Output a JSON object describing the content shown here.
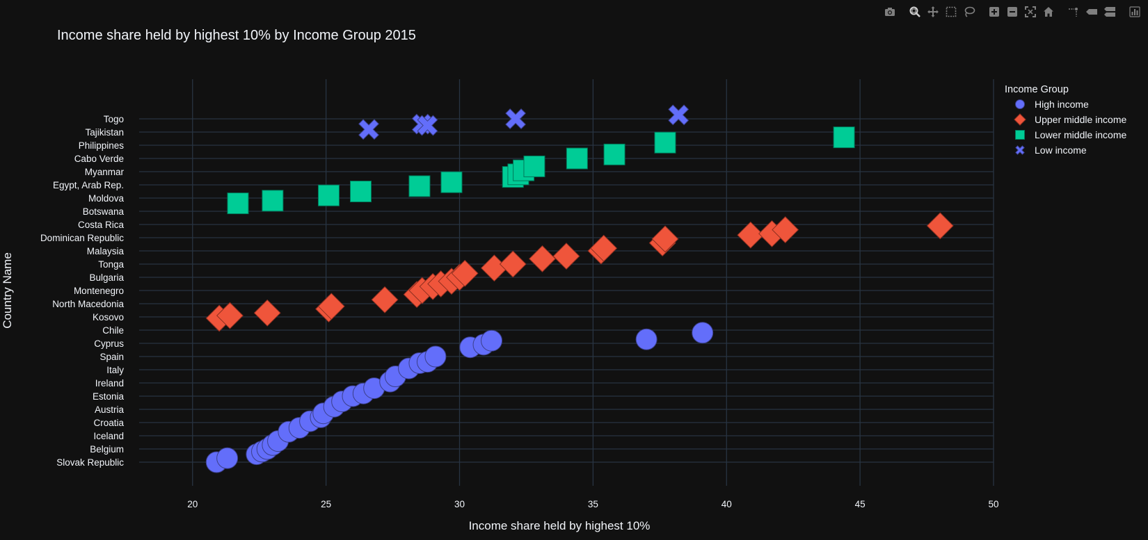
{
  "toolbar": {
    "buttons": [
      {
        "name": "camera-icon",
        "title": "Download plot as a png"
      },
      {
        "name": "zoom-icon",
        "title": "Zoom"
      },
      {
        "name": "pan-icon",
        "title": "Pan"
      },
      {
        "name": "box-select-icon",
        "title": "Box Select"
      },
      {
        "name": "lasso-select-icon",
        "title": "Lasso Select"
      },
      {
        "name": "zoom-in-icon",
        "title": "Zoom in"
      },
      {
        "name": "zoom-out-icon",
        "title": "Zoom out"
      },
      {
        "name": "autoscale-icon",
        "title": "Autoscale"
      },
      {
        "name": "reset-axes-icon",
        "title": "Reset axes"
      },
      {
        "name": "spike-lines-icon",
        "title": "Toggle Spike Lines"
      },
      {
        "name": "hover-closest-icon",
        "title": "Show closest data on hover"
      },
      {
        "name": "hover-compare-icon",
        "title": "Compare data on hover"
      },
      {
        "name": "plotly-logo-icon",
        "title": "Produced with Plotly"
      }
    ]
  },
  "colors": {
    "background": "#111111",
    "grid": "#283442",
    "text": "#f2f5fa",
    "high": "#636efa",
    "upper": "#EF553B",
    "lower": "#00cc96",
    "low": "#636efa"
  },
  "chart_data": {
    "type": "scatter",
    "title": "Income share held by highest 10% by Income Group 2015",
    "xlabel": "Income share held by highest 10%",
    "ylabel": "Country Name",
    "xlim": [
      18,
      50
    ],
    "xticks": [
      20,
      25,
      30,
      35,
      40,
      45,
      50
    ],
    "yticks": [
      "Togo",
      "Tajikistan",
      "Philippines",
      "Cabo Verde",
      "Myanmar",
      "Egypt, Arab Rep.",
      "Moldova",
      "Botswana",
      "Costa Rica",
      "Dominican Republic",
      "Malaysia",
      "Tonga",
      "Bulgaria",
      "Montenegro",
      "North Macedonia",
      "Kosovo",
      "Chile",
      "Cyprus",
      "Spain",
      "Italy",
      "Ireland",
      "Estonia",
      "Austria",
      "Croatia",
      "Iceland",
      "Belgium",
      "Slovak Republic"
    ],
    "grid": true,
    "legend": {
      "title": "Income Group",
      "position": "top-right"
    },
    "series": [
      {
        "name": "High income",
        "symbol": "circle",
        "color": "#636efa",
        "points": [
          [
            20.9,
            0.0
          ],
          [
            21.3,
            0.3
          ],
          [
            22.4,
            0.6
          ],
          [
            22.6,
            0.8
          ],
          [
            22.8,
            1.0
          ],
          [
            23.0,
            1.3
          ],
          [
            23.2,
            1.6
          ],
          [
            23.6,
            2.3
          ],
          [
            24.0,
            2.6
          ],
          [
            24.4,
            3.1
          ],
          [
            24.8,
            3.4
          ],
          [
            24.9,
            3.7
          ],
          [
            25.3,
            4.2
          ],
          [
            25.6,
            4.6
          ],
          [
            26.0,
            5.0
          ],
          [
            26.4,
            5.2
          ],
          [
            26.8,
            5.6
          ],
          [
            27.4,
            6.1
          ],
          [
            27.6,
            6.5
          ],
          [
            28.1,
            7.1
          ],
          [
            28.5,
            7.5
          ],
          [
            28.8,
            7.6
          ],
          [
            29.1,
            8.0
          ],
          [
            30.4,
            8.7
          ],
          [
            30.9,
            8.9
          ],
          [
            31.2,
            9.2
          ],
          [
            37.0,
            9.3
          ],
          [
            39.1,
            9.8
          ]
        ]
      },
      {
        "name": "Upper middle income",
        "symbol": "diamond",
        "color": "#EF553B",
        "points": [
          [
            21.0,
            10.9
          ],
          [
            21.4,
            11.1
          ],
          [
            22.8,
            11.3
          ],
          [
            25.1,
            11.6
          ],
          [
            25.2,
            11.8
          ],
          [
            27.2,
            12.3
          ],
          [
            28.4,
            12.7
          ],
          [
            28.6,
            13.0
          ],
          [
            29.0,
            13.3
          ],
          [
            29.3,
            13.5
          ],
          [
            29.7,
            13.7
          ],
          [
            30.0,
            14.0
          ],
          [
            30.2,
            14.3
          ],
          [
            31.3,
            14.7
          ],
          [
            32.0,
            15.0
          ],
          [
            33.1,
            15.4
          ],
          [
            34.0,
            15.6
          ],
          [
            35.3,
            16.0
          ],
          [
            35.4,
            16.2
          ],
          [
            37.6,
            16.6
          ],
          [
            37.7,
            16.9
          ],
          [
            40.9,
            17.2
          ],
          [
            41.7,
            17.3
          ],
          [
            42.2,
            17.6
          ],
          [
            48.0,
            17.9
          ]
        ]
      },
      {
        "name": "Lower middle income",
        "symbol": "square",
        "color": "#00cc96",
        "points": [
          [
            21.7,
            19.6
          ],
          [
            23.0,
            19.8
          ],
          [
            25.1,
            20.2
          ],
          [
            26.3,
            20.5
          ],
          [
            28.5,
            20.9
          ],
          [
            29.7,
            21.2
          ],
          [
            32.0,
            21.6
          ],
          [
            32.2,
            21.8
          ],
          [
            32.4,
            22.1
          ],
          [
            32.8,
            22.4
          ],
          [
            34.4,
            23.0
          ],
          [
            35.8,
            23.3
          ],
          [
            37.7,
            24.2
          ],
          [
            44.4,
            24.6
          ]
        ]
      },
      {
        "name": "Low income",
        "symbol": "x",
        "color": "#636efa",
        "points": [
          [
            26.6,
            25.2
          ],
          [
            28.6,
            25.6
          ],
          [
            28.8,
            25.5
          ],
          [
            32.1,
            26.0
          ],
          [
            38.2,
            26.3
          ]
        ]
      }
    ]
  }
}
